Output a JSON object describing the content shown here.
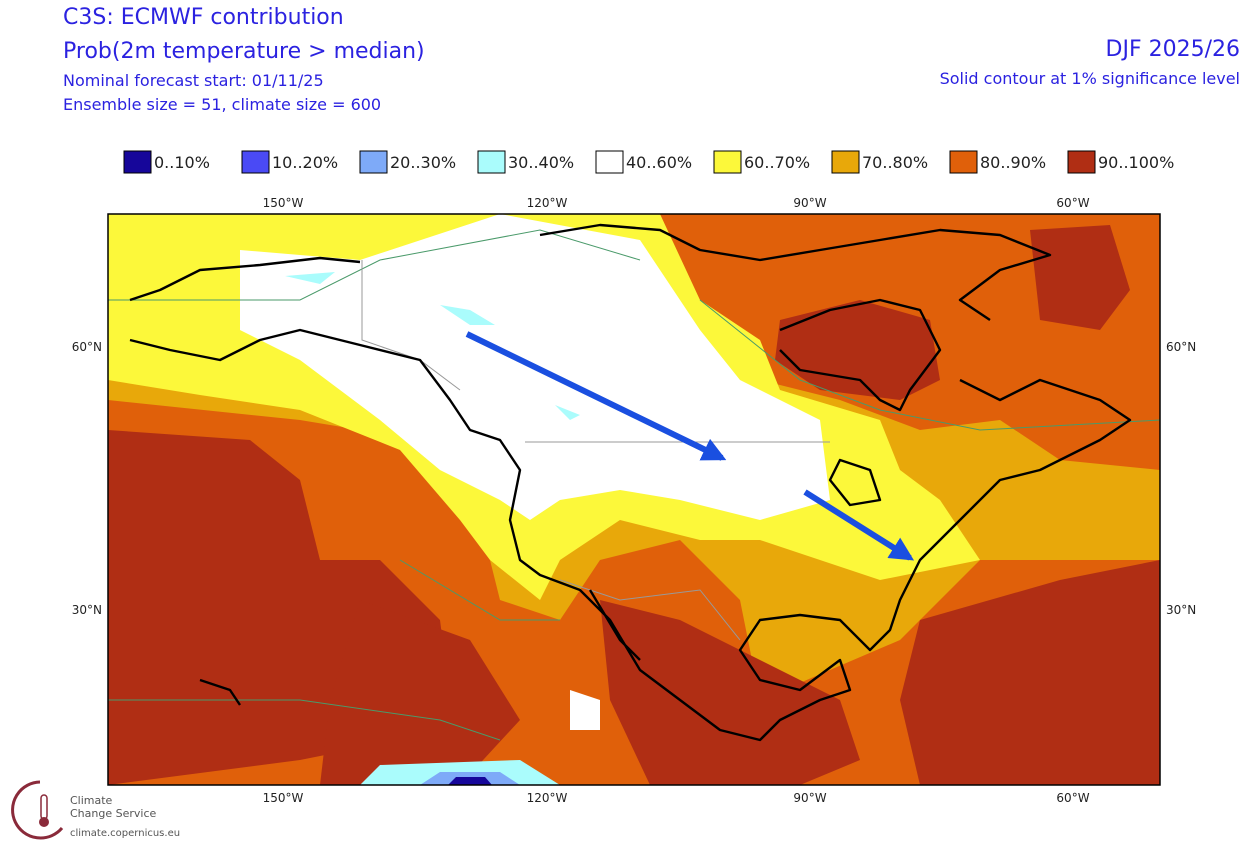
{
  "header": {
    "title": "C3S: ECMWF contribution",
    "subtitle": "Prob(2m temperature > median)",
    "forecast_start": "Nominal forecast start: 01/11/25",
    "ensemble": "Ensemble size = 51, climate size = 600",
    "season": "DJF 2025/26",
    "significance": "Solid contour at 1% significance level"
  },
  "legend": [
    {
      "label": "0..10%",
      "color": "#16069a"
    },
    {
      "label": "10..20%",
      "color": "#4a4af5"
    },
    {
      "label": "20..30%",
      "color": "#7eaaf8"
    },
    {
      "label": "30..40%",
      "color": "#aafcfc"
    },
    {
      "label": "40..60%",
      "color": "#ffffff"
    },
    {
      "label": "60..70%",
      "color": "#fcf83a"
    },
    {
      "label": "70..80%",
      "color": "#e8a80a"
    },
    {
      "label": "80..90%",
      "color": "#e0600a"
    },
    {
      "label": "90..100%",
      "color": "#b02e14"
    }
  ],
  "map": {
    "top_labels": [
      "150°W",
      "120°W",
      "90°W",
      "60°W"
    ],
    "bottom_labels": [
      "150°W",
      "120°W",
      "90°W",
      "60°W"
    ],
    "left_labels": [
      "60°N",
      "30°N"
    ],
    "right_labels": [
      "60°N",
      "30°N"
    ]
  },
  "logo": {
    "line1": "Climate",
    "line2": "Change Service",
    "url": "climate.copernicus.eu"
  }
}
